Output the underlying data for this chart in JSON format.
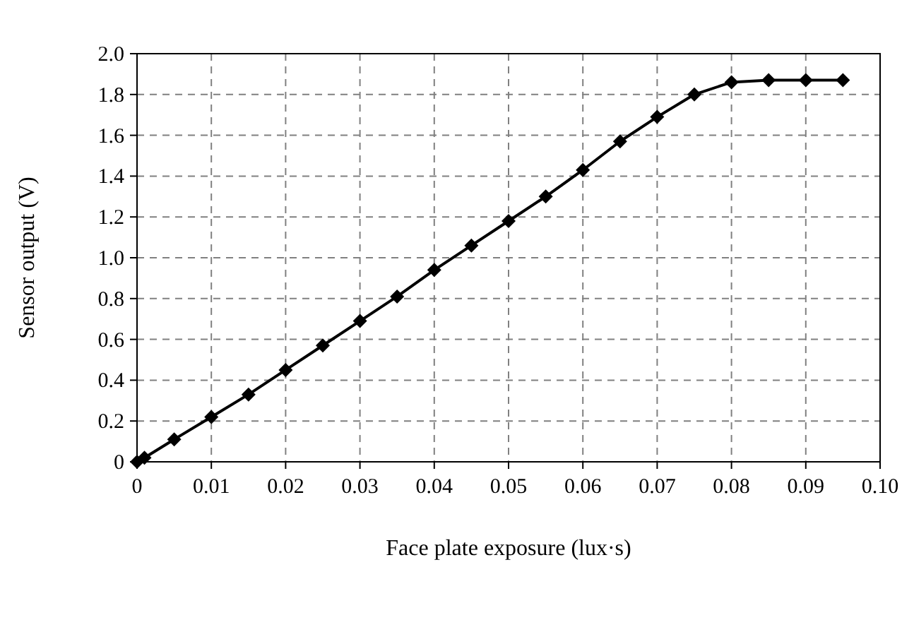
{
  "chart_data": {
    "type": "line",
    "xlabel": "Face plate exposure (lux·s)",
    "ylabel": "Sensor output (V)",
    "x": [
      0,
      0.001,
      0.005,
      0.01,
      0.015,
      0.02,
      0.025,
      0.03,
      0.035,
      0.04,
      0.045,
      0.05,
      0.055,
      0.06,
      0.065,
      0.07,
      0.075,
      0.08,
      0.085,
      0.09,
      0.095
    ],
    "series": [
      {
        "color": "#000000",
        "values": [
          0.0,
          0.02,
          0.11,
          0.22,
          0.33,
          0.45,
          0.57,
          0.69,
          0.81,
          0.94,
          1.06,
          1.18,
          1.3,
          1.43,
          1.57,
          1.69,
          1.8,
          1.86,
          1.87,
          1.87,
          1.87
        ]
      }
    ],
    "xlim": [
      0,
      0.1
    ],
    "ylim": [
      0,
      2
    ],
    "xticks": [
      0,
      0.01,
      0.02,
      0.03,
      0.04,
      0.05,
      0.06,
      0.07,
      0.08,
      0.09,
      {
        "value": 0.1,
        "label": "0.10"
      }
    ],
    "yticks": [
      0,
      0.2,
      0.4,
      0.6,
      0.8,
      {
        "value": 1,
        "label": "1.0"
      },
      1.2,
      1.4,
      1.6,
      1.8,
      {
        "value": 2,
        "label": "2.0"
      }
    ],
    "grid": true,
    "marker": "diamond",
    "line_style": "solid"
  }
}
